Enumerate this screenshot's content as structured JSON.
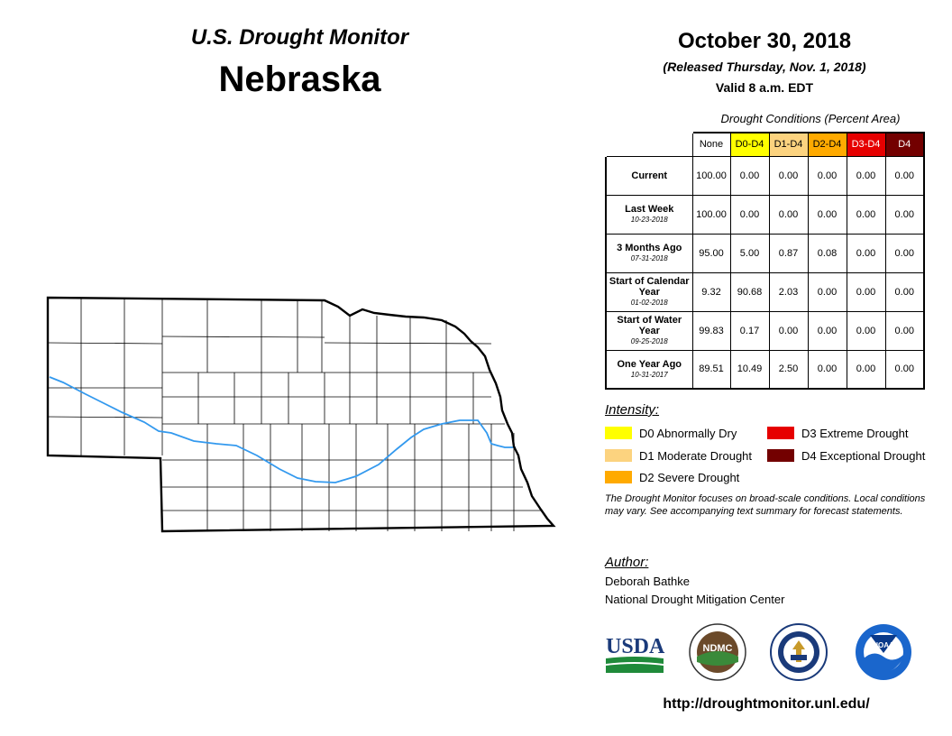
{
  "header": {
    "monitor_title": "U.S. Drought Monitor",
    "state": "Nebraska",
    "date": "October 30, 2018",
    "released": "(Released Thursday, Nov. 1, 2018)",
    "valid": "Valid 8 a.m. EDT"
  },
  "table": {
    "caption": "Drought Conditions (Percent Area)",
    "columns": [
      {
        "label": "None",
        "color": "#ffffff",
        "text_color": "#000000"
      },
      {
        "label": "D0-D4",
        "color": "#ffff00",
        "text_color": "#000000"
      },
      {
        "label": "D1-D4",
        "color": "#fcd37f",
        "text_color": "#000000"
      },
      {
        "label": "D2-D4",
        "color": "#ffaa00",
        "text_color": "#000000"
      },
      {
        "label": "D3-D4",
        "color": "#e60000",
        "text_color": "#ffffff"
      },
      {
        "label": "D4",
        "color": "#730000",
        "text_color": "#ffffff"
      }
    ],
    "rows": [
      {
        "label": "Current",
        "sub": "",
        "values": [
          "100.00",
          "0.00",
          "0.00",
          "0.00",
          "0.00",
          "0.00"
        ]
      },
      {
        "label": "Last Week",
        "sub": "10-23-2018",
        "values": [
          "100.00",
          "0.00",
          "0.00",
          "0.00",
          "0.00",
          "0.00"
        ]
      },
      {
        "label": "3 Months Ago",
        "sub": "07-31-2018",
        "values": [
          "95.00",
          "5.00",
          "0.87",
          "0.08",
          "0.00",
          "0.00"
        ]
      },
      {
        "label": "Start of Calendar Year",
        "sub": "01-02-2018",
        "values": [
          "9.32",
          "90.68",
          "2.03",
          "0.00",
          "0.00",
          "0.00"
        ]
      },
      {
        "label": "Start of Water Year",
        "sub": "09-25-2018",
        "values": [
          "99.83",
          "0.17",
          "0.00",
          "0.00",
          "0.00",
          "0.00"
        ]
      },
      {
        "label": "One Year Ago",
        "sub": "10-31-2017",
        "values": [
          "89.51",
          "10.49",
          "2.50",
          "0.00",
          "0.00",
          "0.00"
        ]
      }
    ]
  },
  "legend": {
    "title": "Intensity:",
    "items": [
      {
        "label": "D0 Abnormally Dry",
        "color": "#ffff00"
      },
      {
        "label": "D1 Moderate Drought",
        "color": "#fcd37f"
      },
      {
        "label": "D2 Severe Drought",
        "color": "#ffaa00"
      },
      {
        "label": "D3 Extreme Drought",
        "color": "#e60000"
      },
      {
        "label": "D4 Exceptional Drought",
        "color": "#730000"
      }
    ]
  },
  "note": "The Drought Monitor focuses on broad-scale conditions. Local conditions may vary. See accompanying text summary for forecast statements.",
  "author": {
    "title": "Author:",
    "name": "Deborah Bathke",
    "org": "National Drought Mitigation Center"
  },
  "logos": {
    "usda": "USDA",
    "ndmc": "NDMC",
    "noaa": "NOAA"
  },
  "map": {
    "state_outline_color": "#000000",
    "county_line_color": "#000000",
    "river_color": "#3399ee"
  },
  "url": "http://droughtmonitor.unl.edu/"
}
